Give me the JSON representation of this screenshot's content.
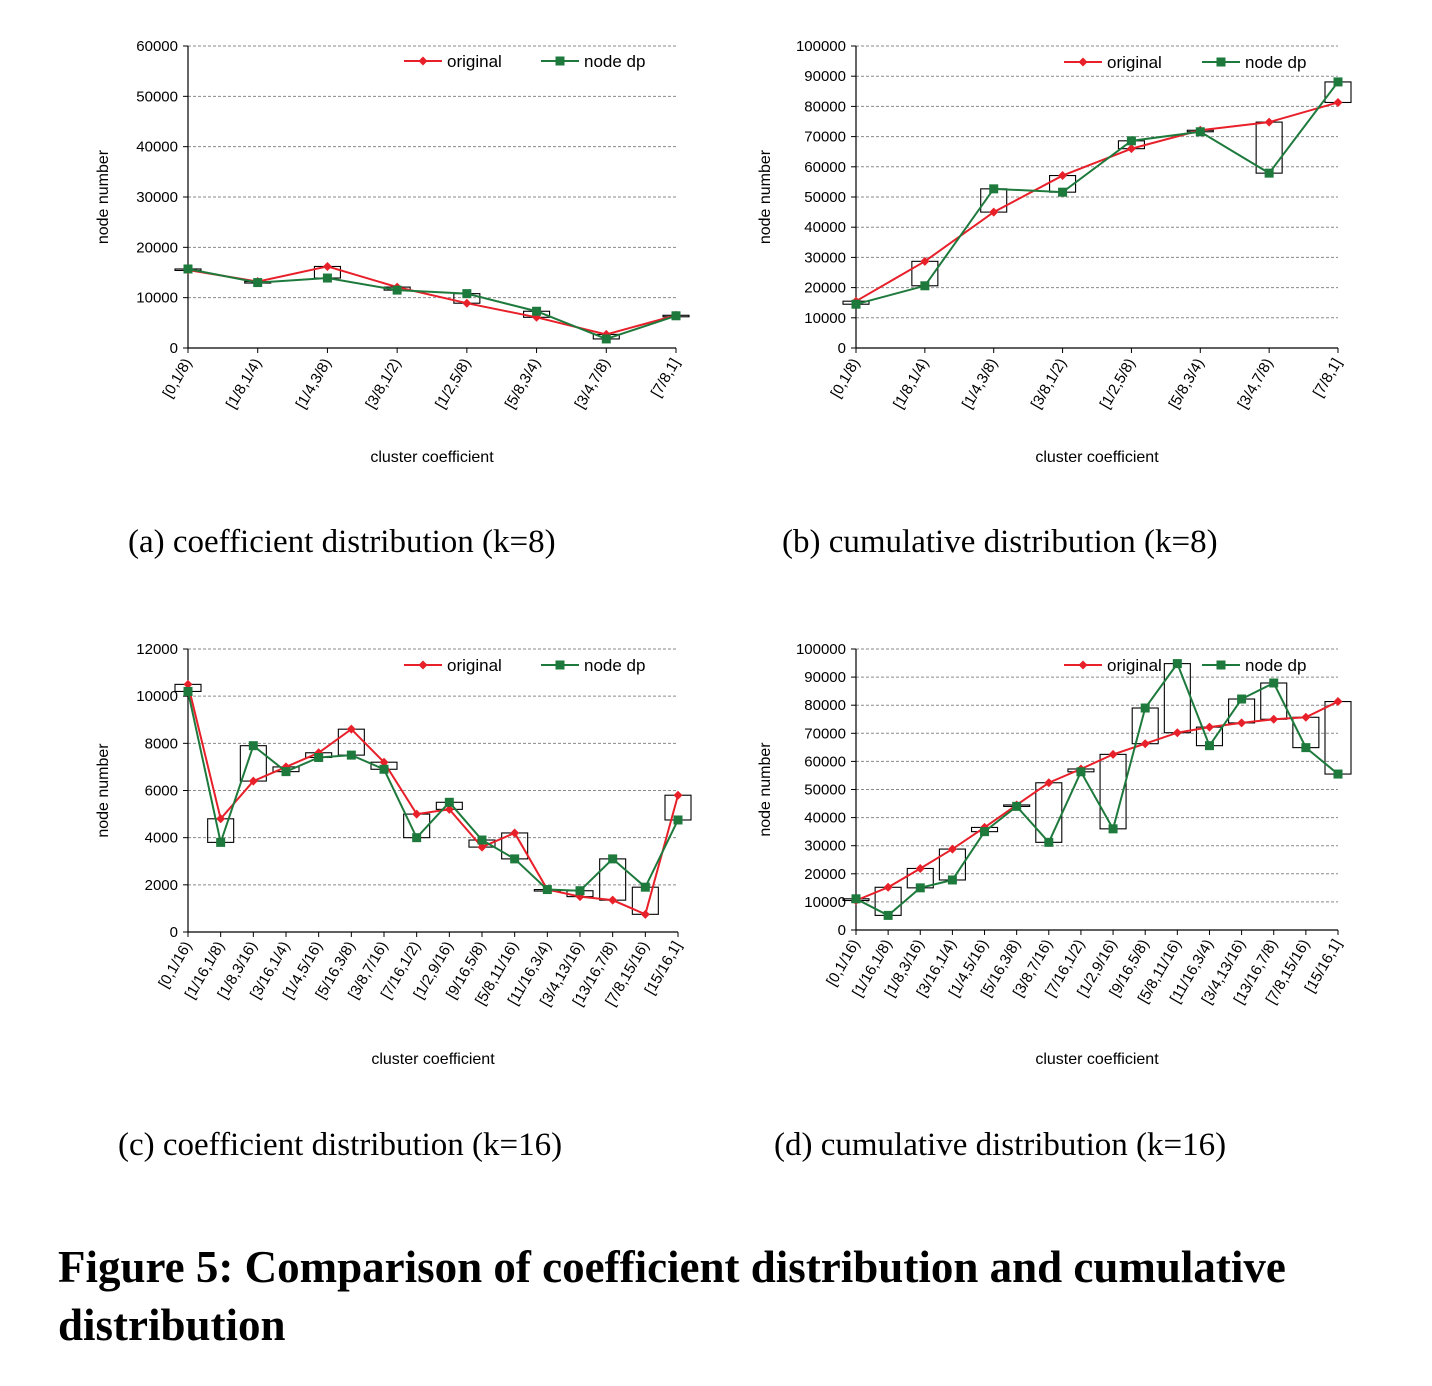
{
  "chart_data": [
    {
      "id": "a",
      "type": "line",
      "xlabel": "cluster coefficient",
      "ylabel": "node number",
      "ylim": [
        0,
        60000
      ],
      "yticks": [
        0,
        10000,
        20000,
        30000,
        40000,
        50000,
        60000
      ],
      "ytick_labels": [
        "0",
        "10000",
        "20000",
        "30000",
        "40000",
        "50000",
        "60000"
      ],
      "grid": "horizontal dashed",
      "legend": "top-right",
      "categories": [
        "[0,1/8)",
        "[1/8,1/4)",
        "[1/4,3/8)",
        "[3/8,1/2)",
        "[1/2,5/8)",
        "[5/8,3/4)",
        "[3/4,7/8)",
        "[7/8,1]"
      ],
      "series": [
        {
          "name": "original",
          "color": "#e8202a",
          "marker": "diamond",
          "values": [
            15500,
            13200,
            16200,
            12100,
            8900,
            6100,
            2700,
            6500
          ]
        },
        {
          "name": "node dp",
          "color": "#1e7a3c",
          "marker": "square",
          "values": [
            15700,
            13000,
            13900,
            11500,
            10800,
            7300,
            1800,
            6400
          ]
        }
      ],
      "caption": "(a)  coefficient distribution (k=8)"
    },
    {
      "id": "b",
      "type": "line",
      "xlabel": "cluster coefficient",
      "ylabel": "node number",
      "ylim": [
        0,
        100000
      ],
      "yticks": [
        0,
        10000,
        20000,
        30000,
        40000,
        50000,
        60000,
        70000,
        80000,
        90000,
        100000
      ],
      "ytick_labels": [
        "0",
        "10000",
        "20000",
        "30000",
        "40000",
        "50000",
        "60000",
        "70000",
        "80000",
        "90000",
        "100000"
      ],
      "grid": "horizontal dashed",
      "legend": "top-right",
      "categories": [
        "[0,1/8)",
        "[1/8,1/4)",
        "[1/4,3/8)",
        "[3/8,1/2)",
        "[1/2,5/8)",
        "[5/8,3/4)",
        "[3/4,7/8)",
        "[7/8,1]"
      ],
      "series": [
        {
          "name": "original",
          "color": "#e8202a",
          "marker": "diamond",
          "values": [
            15500,
            28700,
            45000,
            57100,
            66000,
            72100,
            74800,
            81300
          ]
        },
        {
          "name": "node dp",
          "color": "#1e7a3c",
          "marker": "square",
          "values": [
            14500,
            20600,
            52700,
            51600,
            68600,
            71600,
            57900,
            88100
          ]
        }
      ],
      "caption": "(b)  cumulative distribution (k=8)"
    },
    {
      "id": "c",
      "type": "line",
      "xlabel": "cluster coefficient",
      "ylabel": "node number",
      "ylim": [
        0,
        12000
      ],
      "yticks": [
        0,
        2000,
        4000,
        6000,
        8000,
        10000,
        12000
      ],
      "ytick_labels": [
        "0",
        "2000",
        "4000",
        "6000",
        "8000",
        "10000",
        "12000"
      ],
      "grid": "horizontal dashed",
      "legend": "top-right",
      "categories": [
        "[0,1/16)",
        "[1/16,1/8)",
        "[1/8,3/16)",
        "[3/16,1/4)",
        "[1/4,5/16)",
        "[5/16,3/8)",
        "[3/8,7/16)",
        "[7/16,1/2)",
        "[1/2,9/16)",
        "[9/16,5/8)",
        "[5/8,11/16)",
        "[11/16,3/4)",
        "[3/4,13/16)",
        "[13/16,7/8)",
        "[7/8,15/16)",
        "[15/16,1]"
      ],
      "series": [
        {
          "name": "original",
          "color": "#e8202a",
          "marker": "diamond",
          "values": [
            10500,
            4800,
            6400,
            7000,
            7600,
            8600,
            7200,
            5000,
            5200,
            3600,
            4200,
            1800,
            1500,
            1350,
            750,
            5800
          ]
        },
        {
          "name": "node dp",
          "color": "#1e7a3c",
          "marker": "square",
          "values": [
            10200,
            3800,
            7900,
            6800,
            7400,
            7500,
            6900,
            4000,
            5500,
            3900,
            3100,
            1800,
            1750,
            3100,
            1900,
            4750
          ]
        }
      ],
      "caption": "(c)  coefficient distribution (k=16)"
    },
    {
      "id": "d",
      "type": "line",
      "xlabel": "cluster coefficient",
      "ylabel": "node number",
      "ylim": [
        0,
        100000
      ],
      "yticks": [
        0,
        10000,
        20000,
        30000,
        40000,
        50000,
        60000,
        70000,
        80000,
        90000,
        100000
      ],
      "ytick_labels": [
        "0",
        "10000",
        "20000",
        "30000",
        "40000",
        "50000",
        "60000",
        "70000",
        "80000",
        "90000",
        "100000"
      ],
      "grid": "horizontal dashed",
      "legend": "top-right",
      "categories": [
        "[0,1/16)",
        "[1/16,1/8)",
        "[1/8,3/16)",
        "[3/16,1/4)",
        "[1/4,5/16)",
        "[5/16,3/8)",
        "[3/8,7/16)",
        "[7/16,1/2)",
        "[1/2,9/16)",
        "[9/16,5/8)",
        "[5/8,11/16)",
        "[11/16,3/4)",
        "[3/4,13/16)",
        "[13/16,7/8)",
        "[7/8,15/16)",
        "[15/16,1]"
      ],
      "series": [
        {
          "name": "original",
          "color": "#e8202a",
          "marker": "diamond",
          "values": [
            10500,
            15200,
            21900,
            28800,
            36500,
            44500,
            52400,
            57300,
            62500,
            66300,
            70200,
            72200,
            73700,
            75000,
            75700,
            81300
          ]
        },
        {
          "name": "node dp",
          "color": "#1e7a3c",
          "marker": "square",
          "values": [
            11100,
            5200,
            15000,
            17800,
            35000,
            44000,
            31200,
            56300,
            36000,
            79000,
            94800,
            65600,
            82200,
            87900,
            64900,
            55500
          ]
        }
      ],
      "caption": "(d)  cumulative distribution (k=16)"
    }
  ],
  "figure_caption": "Figure 5: Comparison of coefficient distribution and cumulative distribution"
}
